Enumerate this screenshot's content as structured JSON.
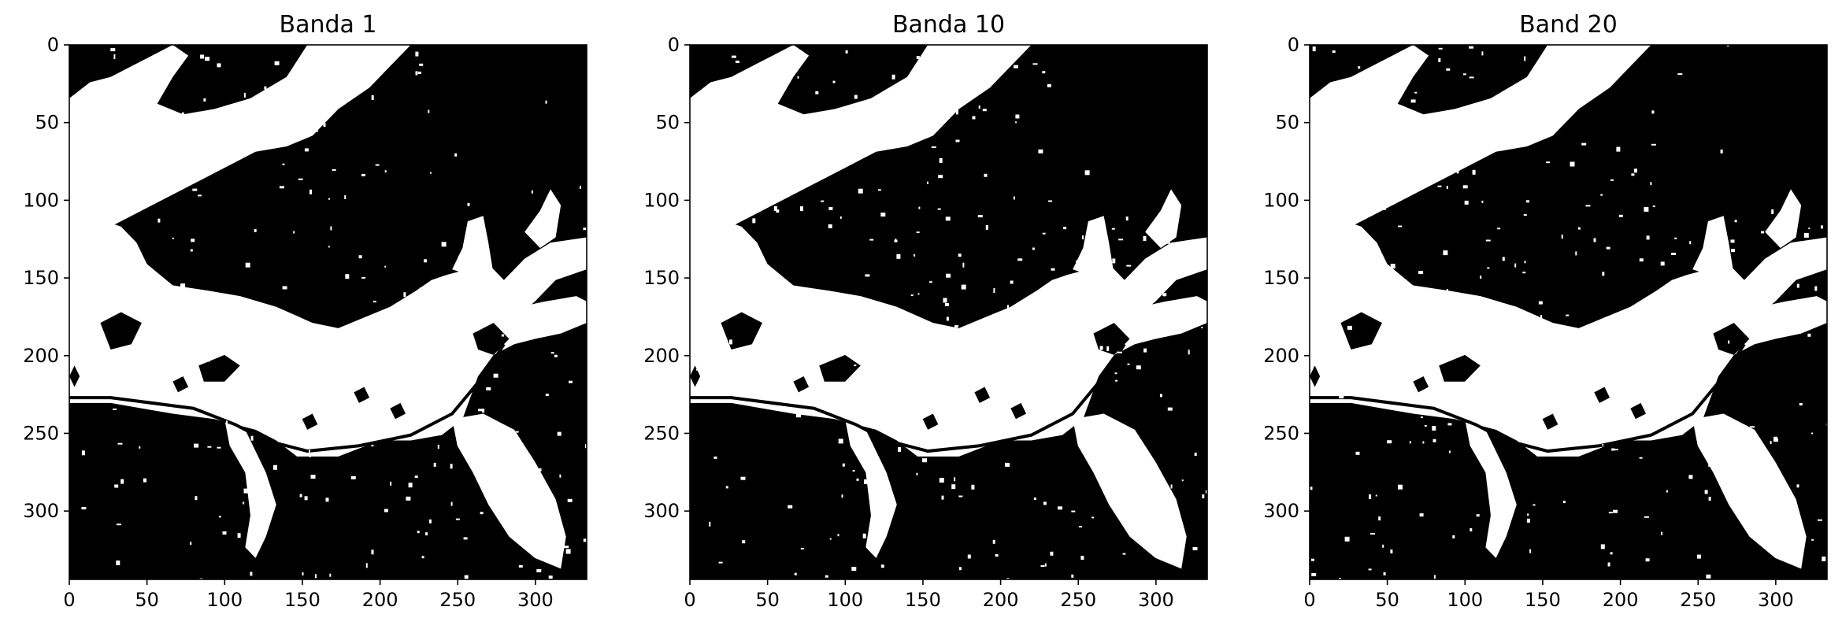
{
  "chart_data": [
    {
      "type": "heatmap",
      "title": "Banda 1",
      "xlabel": "",
      "ylabel": "",
      "xlim": [
        0,
        333
      ],
      "ylim": [
        344,
        0
      ],
      "x_ticks": [
        0,
        50,
        100,
        150,
        200,
        250,
        300
      ],
      "y_ticks": [
        0,
        50,
        100,
        150,
        200,
        250,
        300
      ],
      "colormap": [
        "#000000",
        "#ffffff"
      ]
    },
    {
      "type": "heatmap",
      "title": "Banda 10",
      "xlabel": "",
      "ylabel": "",
      "xlim": [
        0,
        333
      ],
      "ylim": [
        344,
        0
      ],
      "x_ticks": [
        0,
        50,
        100,
        150,
        200,
        250,
        300
      ],
      "y_ticks": [
        0,
        50,
        100,
        150,
        200,
        250,
        300
      ],
      "colormap": [
        "#000000",
        "#ffffff"
      ]
    },
    {
      "type": "heatmap",
      "title": "Band 20",
      "xlabel": "",
      "ylabel": "",
      "xlim": [
        0,
        333
      ],
      "ylim": [
        344,
        0
      ],
      "x_ticks": [
        0,
        50,
        100,
        150,
        200,
        250,
        300
      ],
      "y_ticks": [
        0,
        50,
        100,
        150,
        200,
        250,
        300
      ],
      "colormap": [
        "#000000",
        "#ffffff"
      ]
    }
  ]
}
